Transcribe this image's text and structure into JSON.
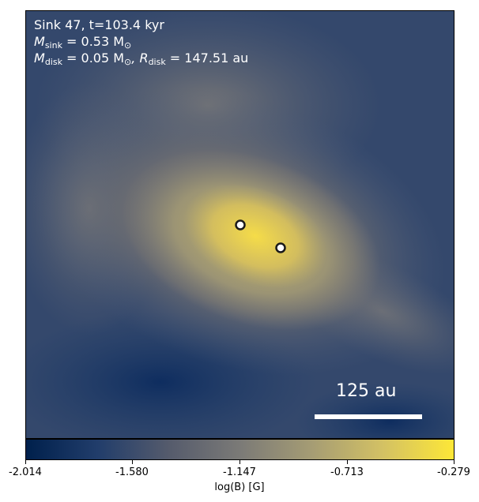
{
  "annotation": {
    "line1": "Sink 47, t=103.4 kyr",
    "msink_label": "M",
    "msink_sub": "sink",
    "msink_value": " = 0.53 M",
    "msink_sun": "⊙",
    "mdisk_label": "M",
    "mdisk_sub": "disk",
    "mdisk_value": " = 0.05 M",
    "mdisk_sun": "⊙",
    "rdisk_label": ", R",
    "rdisk_sub": "disk",
    "rdisk_value": " = 147.51 au"
  },
  "scale_bar": {
    "label": "125 au"
  },
  "colorbar": {
    "label": "log(B) [G]",
    "ticks": [
      "-2.014",
      "-1.580",
      "-1.147",
      "-0.713",
      "-0.279"
    ],
    "colormap": "cividis",
    "colors": [
      "#00204c",
      "#213d6b",
      "#555b6c",
      "#7b7a77",
      "#a59c74",
      "#d3c164",
      "#fde737"
    ]
  },
  "sinks": [
    {
      "name": "sink-primary"
    },
    {
      "name": "sink-secondary"
    }
  ]
}
